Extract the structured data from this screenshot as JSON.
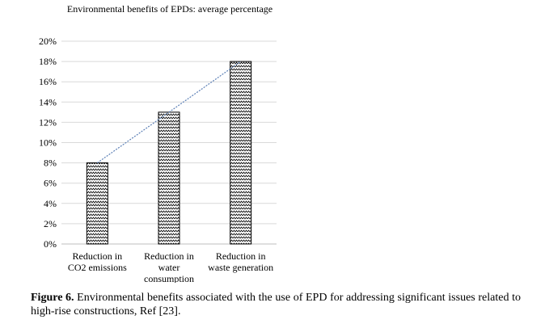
{
  "chart_data": {
    "type": "bar",
    "title": "Environmental benefits of EPDs: average percentage",
    "categories": [
      "Reduction in CO2 emissions",
      "Reduction in water consumption",
      "Reduction in waste generation"
    ],
    "category_lines": [
      [
        "Reduction in",
        "CO2 emissions"
      ],
      [
        "Reduction in",
        "water",
        "consumption"
      ],
      [
        "Reduction in",
        "waste generation"
      ]
    ],
    "values": [
      0.08,
      0.13,
      0.18
    ],
    "ylim": [
      0,
      0.2
    ],
    "yticks": [
      "0%",
      "2%",
      "4%",
      "6%",
      "8%",
      "10%",
      "12%",
      "14%",
      "16%",
      "18%",
      "20%"
    ],
    "grid": true,
    "trendline": true,
    "bar_pattern": "zigzag hatch",
    "trendline_color": "#5b7fb5"
  },
  "caption": {
    "label": "Figure 6.",
    "text": " Environmental benefits associated with the use of EPD for addressing significant issues related to high-rise constructions, Ref [23]."
  }
}
